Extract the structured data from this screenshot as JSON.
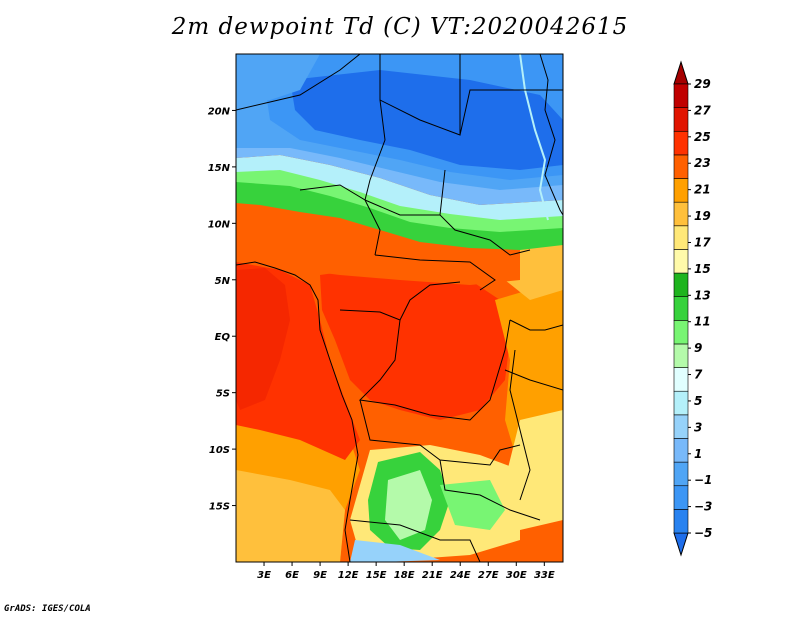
{
  "title": "2m dewpoint Td (C) VT:2020042615",
  "credit": "GrADS: IGES/COLA",
  "map": {
    "lon_range": [
      0,
      35
    ],
    "lat_range": [
      -20,
      25
    ],
    "lat_ticks": [
      {
        "value": 20,
        "label": "20N"
      },
      {
        "value": 15,
        "label": "15N"
      },
      {
        "value": 10,
        "label": "10N"
      },
      {
        "value": 5,
        "label": "5N"
      },
      {
        "value": 0,
        "label": "EQ"
      },
      {
        "value": -5,
        "label": "5S"
      },
      {
        "value": -10,
        "label": "10S"
      },
      {
        "value": -15,
        "label": "15S"
      }
    ],
    "lon_ticks": [
      {
        "value": 3,
        "label": "3E"
      },
      {
        "value": 6,
        "label": "6E"
      },
      {
        "value": 9,
        "label": "9E"
      },
      {
        "value": 12,
        "label": "12E"
      },
      {
        "value": 15,
        "label": "15E"
      },
      {
        "value": 18,
        "label": "18E"
      },
      {
        "value": 21,
        "label": "21E"
      },
      {
        "value": 24,
        "label": "24E"
      },
      {
        "value": 27,
        "label": "27E"
      },
      {
        "value": 30,
        "label": "30E"
      },
      {
        "value": 33,
        "label": "33E"
      }
    ]
  },
  "colorbar": {
    "labels": [
      "-5",
      "-3",
      "-1",
      "1",
      "3",
      "5",
      "7",
      "9",
      "11",
      "13",
      "15",
      "17",
      "19",
      "21",
      "23",
      "25",
      "27",
      "29"
    ],
    "colors": [
      "#1e6eeb",
      "#2882f0",
      "#3c96f5",
      "#50a5f5",
      "#78b9fa",
      "#96d2fa",
      "#b4f0fa",
      "#e1ffff",
      "#b4faaa",
      "#78f573",
      "#37d23c",
      "#1eb41e",
      "#fffaaa",
      "#ffe878",
      "#ffc03c",
      "#ffa000",
      "#ff6000",
      "#ff3200",
      "#e11400",
      "#c00000",
      "#a50000"
    ]
  },
  "field_colors": {
    "sahara_deep": "#1e6eeb",
    "sahara": "#2882f0",
    "sahara_light": "#50a5f5",
    "sahel_green": "#37d23c",
    "sahel_light": "#78f573",
    "humid_orange": "#ff6000",
    "humid_red": "#ff3200",
    "atlantic": "#ff3200",
    "south_orange": "#ffa000",
    "south_yellow": "#ffe878",
    "kalahari_green": "#37d23c",
    "kalahari_light": "#b4faaa",
    "east_yellow": "#ffc03c"
  }
}
